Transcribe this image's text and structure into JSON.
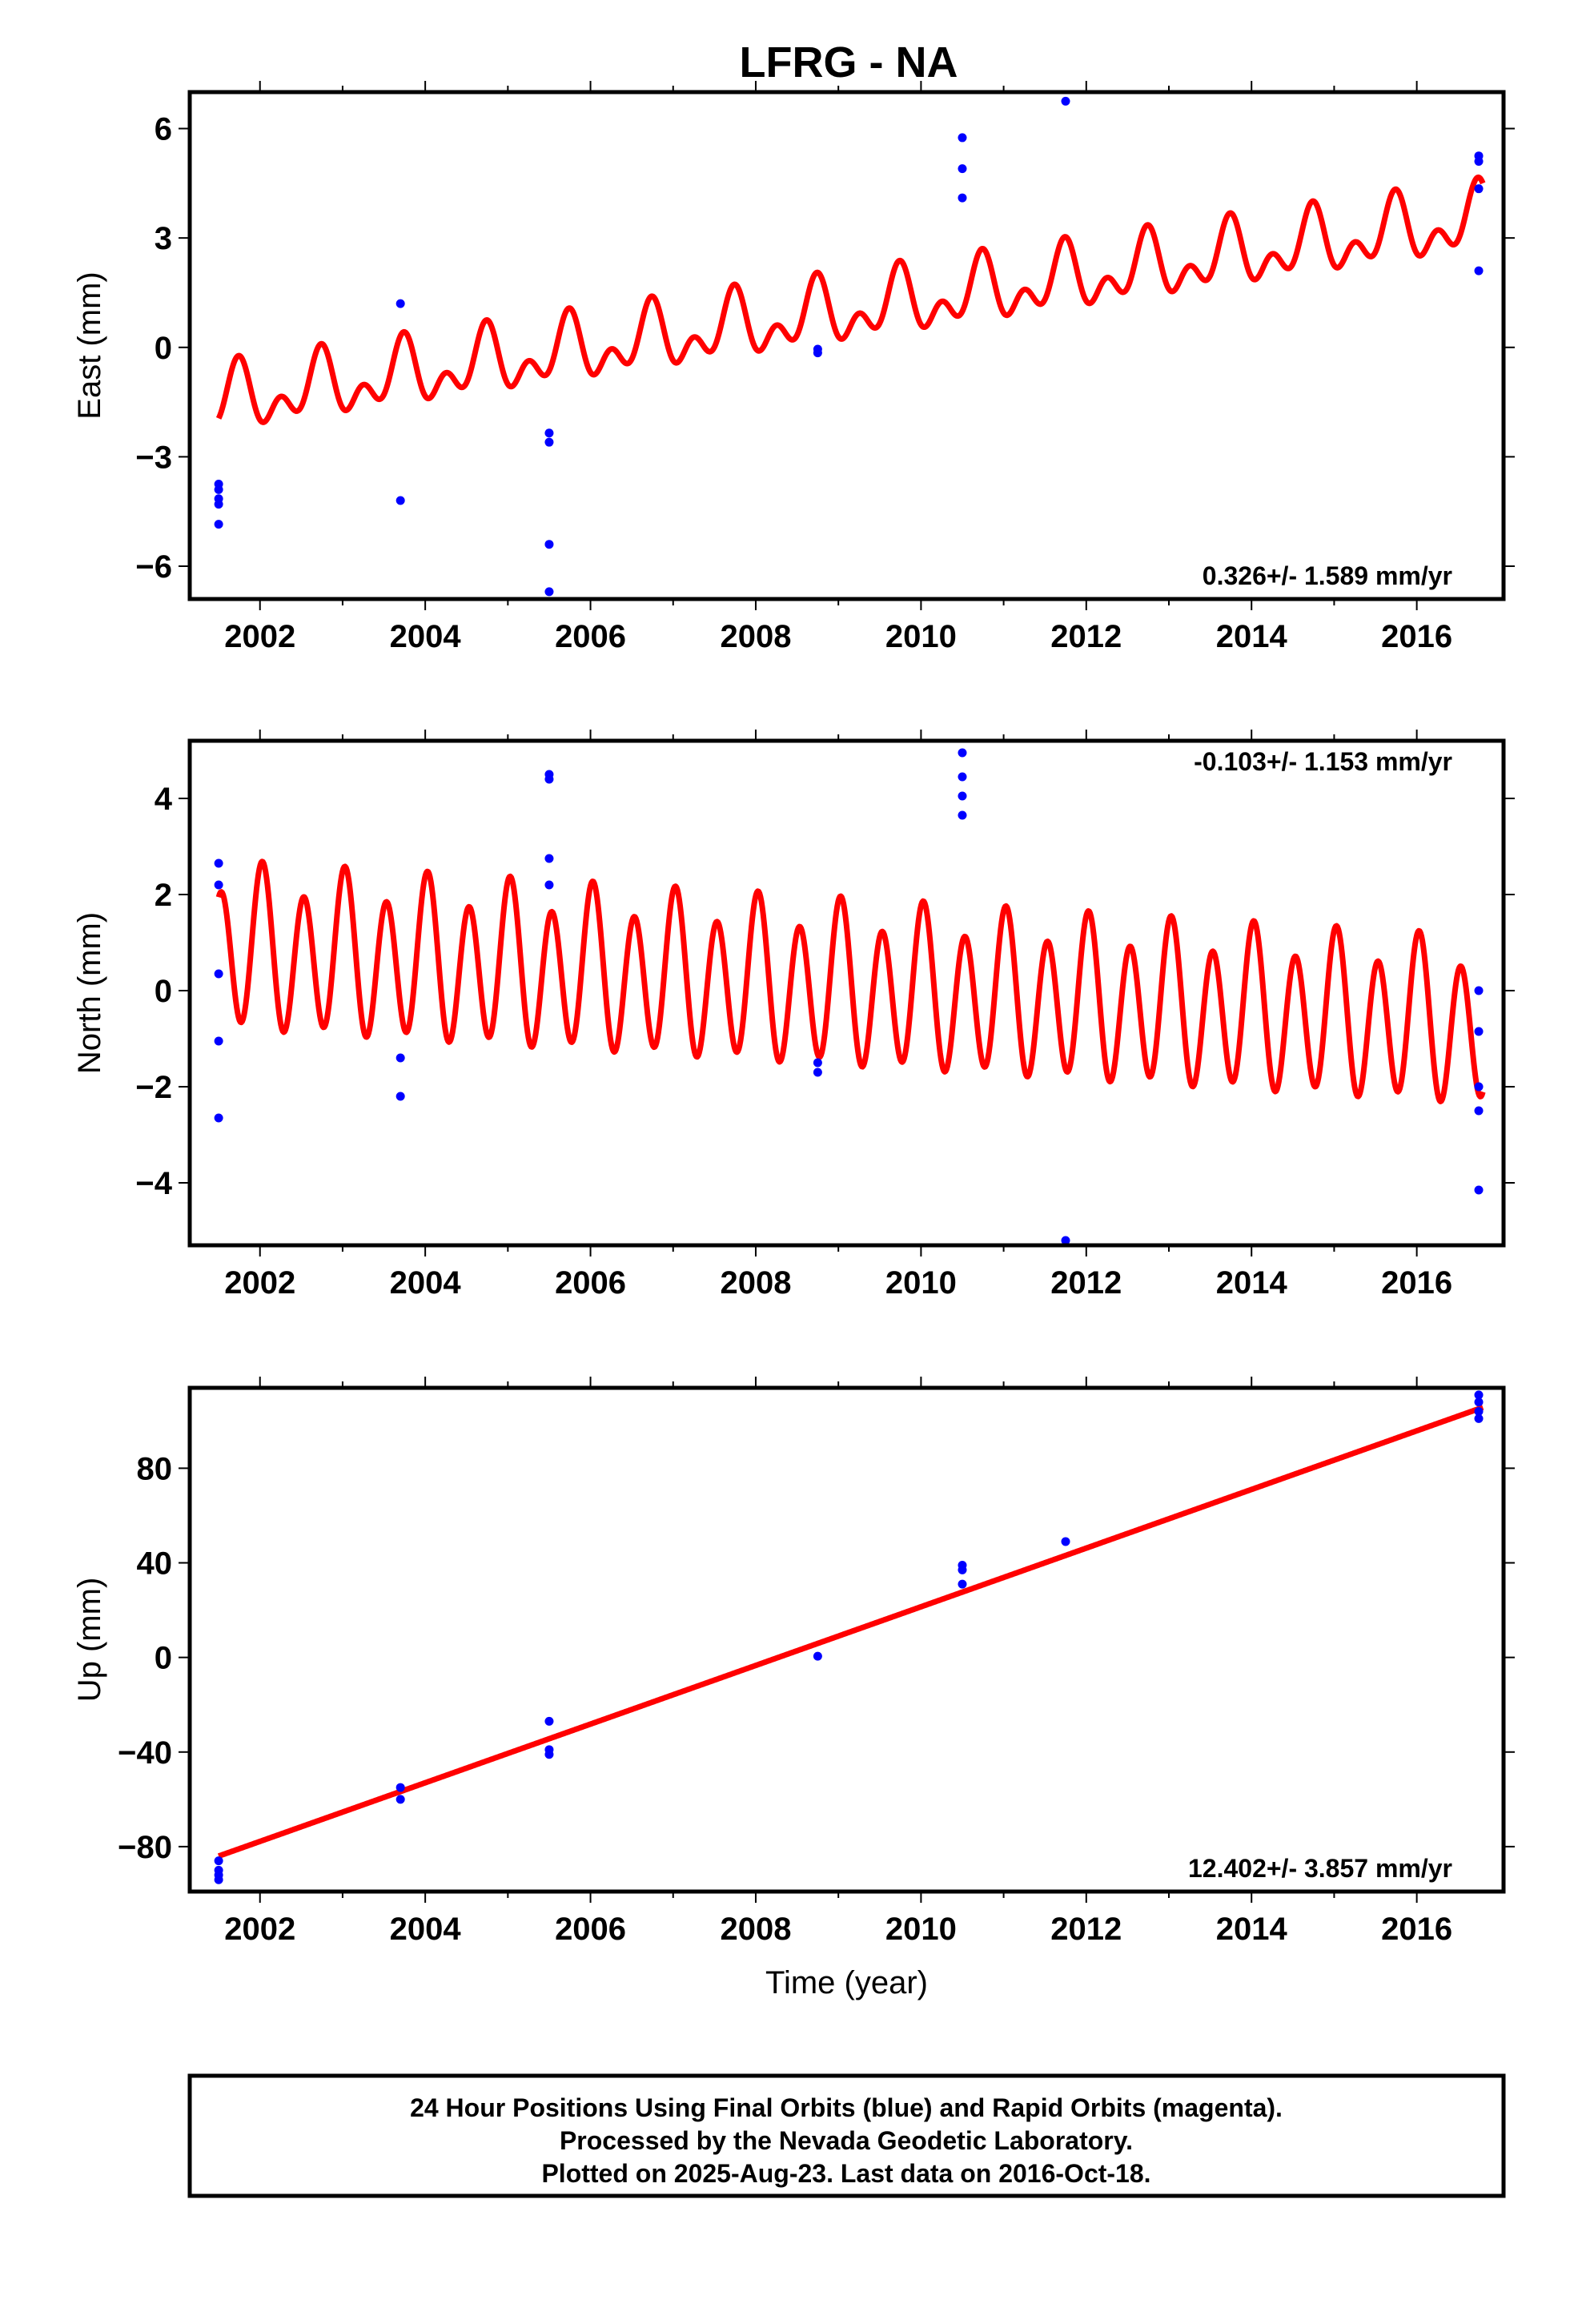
{
  "title": "LFRG - NA",
  "colors": {
    "model": "#ff0000",
    "data": "#0000ff",
    "frame": "#000000"
  },
  "footer": {
    "lines": [
      "24 Hour Positions Using Final Orbits (blue) and Rapid Orbits (magenta).",
      "Processed by the Nevada Geodetic Laboratory.",
      "Plotted on 2025-Aug-23. Last data on 2016-Oct-18."
    ]
  },
  "chart_data": [
    {
      "type": "scatter",
      "name": "east",
      "ylabel": "East (mm)",
      "xlabel": "",
      "xlim": [
        2001.15,
        2017.05
      ],
      "ylim": [
        -6.9,
        7.0
      ],
      "xticks": [
        2002,
        2004,
        2006,
        2008,
        2010,
        2012,
        2014,
        2016
      ],
      "yticks": [
        -6,
        -3,
        0,
        3,
        6
      ],
      "ytick_labels": [
        "−6",
        "−3",
        "0",
        "3",
        "6"
      ],
      "rate_text": "0.326+/- 1.589 mm/yr",
      "rate_position": "bottom-right",
      "model": {
        "start": 2001.5,
        "end": 2016.8,
        "y0": -1.5,
        "slope": 0.326,
        "annual_amp": 0.65,
        "annual_phase": 3.3,
        "semiannual_amp": 0.55,
        "semiannual_phase": 4.75
      },
      "points": [
        [
          2001.5,
          -3.75
        ],
        [
          2001.5,
          -3.9
        ],
        [
          2001.5,
          -4.15
        ],
        [
          2001.5,
          -4.3
        ],
        [
          2001.5,
          -4.85
        ],
        [
          2003.7,
          1.2
        ],
        [
          2003.7,
          -4.2
        ],
        [
          2005.5,
          -2.35
        ],
        [
          2005.5,
          -2.6
        ],
        [
          2005.5,
          -5.4
        ],
        [
          2005.5,
          -6.7
        ],
        [
          2008.75,
          -0.05
        ],
        [
          2008.75,
          -0.15
        ],
        [
          2010.5,
          5.75
        ],
        [
          2010.5,
          4.9
        ],
        [
          2010.5,
          4.1
        ],
        [
          2011.75,
          6.75
        ],
        [
          2016.75,
          5.25
        ],
        [
          2016.75,
          5.1
        ],
        [
          2016.75,
          4.35
        ],
        [
          2016.75,
          2.1
        ]
      ]
    },
    {
      "type": "scatter",
      "name": "north",
      "ylabel": "North (mm)",
      "xlabel": "",
      "xlim": [
        2001.15,
        2017.05
      ],
      "ylim": [
        -5.3,
        5.2
      ],
      "xticks": [
        2002,
        2004,
        2006,
        2008,
        2010,
        2012,
        2014,
        2016
      ],
      "yticks": [
        -4,
        -2,
        0,
        2,
        4
      ],
      "ytick_labels": [
        "−4",
        "−2",
        "0",
        "2",
        "4"
      ],
      "rate_text": "-0.103+/- 1.153 mm/yr",
      "rate_position": "top-right",
      "model": {
        "start": 2001.5,
        "end": 2016.8,
        "y0": 0.85,
        "slope": -0.103,
        "annual_amp": 0.35,
        "annual_phase": 1.6,
        "semiannual_amp": 1.55,
        "semiannual_phase": 1.2
      },
      "points": [
        [
          2001.5,
          2.65
        ],
        [
          2001.5,
          2.2
        ],
        [
          2001.5,
          0.35
        ],
        [
          2001.5,
          -1.05
        ],
        [
          2001.5,
          -2.65
        ],
        [
          2003.7,
          -1.4
        ],
        [
          2003.7,
          -2.2
        ],
        [
          2005.5,
          4.5
        ],
        [
          2005.5,
          4.4
        ],
        [
          2005.5,
          2.75
        ],
        [
          2005.5,
          2.2
        ],
        [
          2008.75,
          -1.5
        ],
        [
          2008.75,
          -1.7
        ],
        [
          2010.5,
          4.95
        ],
        [
          2010.5,
          4.45
        ],
        [
          2010.5,
          4.05
        ],
        [
          2010.5,
          3.65
        ],
        [
          2011.75,
          -5.2
        ],
        [
          2016.75,
          0.0
        ],
        [
          2016.75,
          -0.85
        ],
        [
          2016.75,
          -2.0
        ],
        [
          2016.75,
          -2.5
        ],
        [
          2016.75,
          -4.15
        ]
      ]
    },
    {
      "type": "scatter",
      "name": "up",
      "ylabel": "Up (mm)",
      "xlabel": "Time (year)",
      "xlim": [
        2001.15,
        2017.05
      ],
      "ylim": [
        -99,
        114
      ],
      "xticks": [
        2002,
        2004,
        2006,
        2008,
        2010,
        2012,
        2014,
        2016
      ],
      "yticks": [
        -80,
        -40,
        0,
        40,
        80
      ],
      "ytick_labels": [
        "−80",
        "−40",
        "0",
        "40",
        "80"
      ],
      "rate_text": "12.402+/- 3.857 mm/yr",
      "rate_position": "bottom-right",
      "model": {
        "start": 2001.5,
        "end": 2016.8,
        "y0": -84,
        "slope": 12.402,
        "annual_amp": 0.0,
        "annual_phase": 0.0,
        "semiannual_amp": 0.0,
        "semiannual_phase": 0.0
      },
      "points": [
        [
          2001.5,
          -86
        ],
        [
          2001.5,
          -90
        ],
        [
          2001.5,
          -92
        ],
        [
          2001.5,
          -94
        ],
        [
          2003.7,
          -55
        ],
        [
          2003.7,
          -60
        ],
        [
          2005.5,
          -27
        ],
        [
          2005.5,
          -39
        ],
        [
          2005.5,
          -41
        ],
        [
          2008.75,
          0.5
        ],
        [
          2010.5,
          39
        ],
        [
          2010.5,
          37
        ],
        [
          2010.5,
          31
        ],
        [
          2011.75,
          49
        ],
        [
          2016.75,
          111
        ],
        [
          2016.75,
          108
        ],
        [
          2016.75,
          104
        ],
        [
          2016.75,
          101
        ]
      ]
    }
  ]
}
